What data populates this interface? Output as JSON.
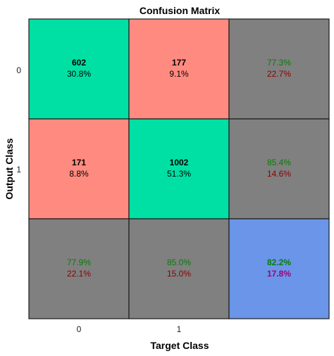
{
  "chart_data": {
    "type": "heatmap",
    "title": "Confusion Matrix",
    "xlabel": "Target Class",
    "ylabel": "Output Class",
    "x_tick_labels": [
      "0",
      "1"
    ],
    "y_tick_labels": [
      "0",
      "1"
    ],
    "cells": [
      [
        {
          "count": "602",
          "percent": "30.8%",
          "kind": "correct"
        },
        {
          "count": "177",
          "percent": "9.1%",
          "kind": "incorrect"
        }
      ],
      [
        {
          "count": "171",
          "percent": "8.8%",
          "kind": "incorrect"
        },
        {
          "count": "1002",
          "percent": "51.3%",
          "kind": "correct"
        }
      ]
    ],
    "row_summary": [
      {
        "correct": "77.3%",
        "incorrect": "22.7%"
      },
      {
        "correct": "85.4%",
        "incorrect": "14.6%"
      }
    ],
    "col_summary": [
      {
        "correct": "77.9%",
        "incorrect": "22.1%"
      },
      {
        "correct": "85.0%",
        "incorrect": "15.0%"
      }
    ],
    "overall": {
      "correct": "82.2%",
      "incorrect": "17.8%"
    },
    "colors": {
      "correct": "#00e0a4",
      "incorrect": "#ff8a80",
      "summary": "#808080",
      "overall": "#6a95e8"
    }
  }
}
